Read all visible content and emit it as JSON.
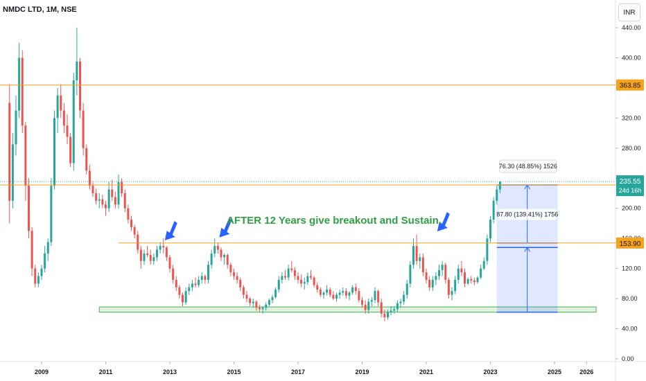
{
  "header": {
    "symbol_label": "NMDC LTD, 1M, NSE",
    "currency": "INR"
  },
  "chart_data": {
    "type": "candlestick",
    "ylim": [
      0,
      440
    ],
    "xlim": [
      2008.0,
      2026.8
    ],
    "y_ticks": [
      "0.00",
      "40.00",
      "80.00",
      "120.00",
      "160.00",
      "200.00",
      "240.00",
      "280.00",
      "320.00",
      "360.00",
      "400.00",
      "440.00"
    ],
    "x_ticks": [
      "2009",
      "2011",
      "2013",
      "2015",
      "2017",
      "2019",
      "2021",
      "2023",
      "2025",
      "2026"
    ],
    "horizontal_levels": [
      {
        "value": 363.85,
        "label": "363.85"
      },
      {
        "value": 231.0,
        "label": "231.00"
      },
      {
        "value": 153.9,
        "label": "153.90"
      }
    ],
    "last_price": {
      "value": 235.55,
      "label": "235.55",
      "countdown": "24d 16h"
    },
    "support_zone": {
      "from_year": 2010.8,
      "to_year": 2026.3,
      "low": 62,
      "high": 69
    },
    "annotation": "AFTER 12 Years give breakout and Sustain.",
    "measure_box": {
      "from_year": 2023.2,
      "to_year": 2025.1,
      "low": 62,
      "high": 231,
      "label_upper": "76.30 (48.85%) 1526",
      "label_lower": "87.80 (139.41%) 1756"
    },
    "arrows_at_years": [
      2012.8,
      2014.5,
      2021.3
    ],
    "colors": {
      "up": "#26a69a",
      "down": "#ef5350",
      "level": "#f7a21b",
      "measure": "#2962ff",
      "zone": "#4caf50",
      "text_green": "#2ea043"
    },
    "candles": [
      [
        2008.0,
        340,
        365,
        180,
        210
      ],
      [
        2008.1,
        210,
        300,
        200,
        285
      ],
      [
        2008.2,
        285,
        350,
        270,
        330
      ],
      [
        2008.3,
        330,
        420,
        320,
        400
      ],
      [
        2008.4,
        400,
        410,
        300,
        310
      ],
      [
        2008.5,
        310,
        315,
        210,
        230
      ],
      [
        2008.6,
        230,
        240,
        160,
        170
      ],
      [
        2008.7,
        170,
        175,
        110,
        120
      ],
      [
        2008.8,
        120,
        125,
        95,
        100
      ],
      [
        2008.9,
        100,
        115,
        95,
        110
      ],
      [
        2009.0,
        110,
        125,
        105,
        120
      ],
      [
        2009.1,
        120,
        150,
        115,
        140
      ],
      [
        2009.2,
        140,
        160,
        130,
        155
      ],
      [
        2009.3,
        155,
        240,
        150,
        230
      ],
      [
        2009.4,
        230,
        330,
        225,
        320
      ],
      [
        2009.5,
        320,
        360,
        300,
        350
      ],
      [
        2009.6,
        350,
        365,
        320,
        330
      ],
      [
        2009.7,
        330,
        340,
        300,
        310
      ],
      [
        2009.8,
        310,
        325,
        285,
        295
      ],
      [
        2009.9,
        295,
        300,
        255,
        260
      ],
      [
        2010.0,
        260,
        380,
        250,
        370
      ],
      [
        2010.1,
        370,
        440,
        350,
        395
      ],
      [
        2010.2,
        395,
        400,
        320,
        330
      ],
      [
        2010.3,
        330,
        340,
        270,
        280
      ],
      [
        2010.4,
        280,
        285,
        245,
        250
      ],
      [
        2010.5,
        250,
        258,
        225,
        230
      ],
      [
        2010.6,
        230,
        235,
        215,
        220
      ],
      [
        2010.7,
        220,
        226,
        205,
        210
      ],
      [
        2010.8,
        210,
        220,
        200,
        212
      ],
      [
        2010.9,
        212,
        218,
        200,
        205
      ],
      [
        2011.0,
        205,
        210,
        190,
        200
      ],
      [
        2011.1,
        200,
        235,
        195,
        225
      ],
      [
        2011.2,
        225,
        238,
        210,
        215
      ],
      [
        2011.3,
        215,
        222,
        200,
        205
      ],
      [
        2011.4,
        205,
        245,
        200,
        235
      ],
      [
        2011.5,
        235,
        240,
        215,
        220
      ],
      [
        2011.6,
        220,
        225,
        195,
        200
      ],
      [
        2011.7,
        200,
        205,
        180,
        185
      ],
      [
        2011.8,
        185,
        190,
        170,
        175
      ],
      [
        2011.9,
        175,
        178,
        160,
        165
      ],
      [
        2012.0,
        165,
        170,
        140,
        145
      ],
      [
        2012.1,
        145,
        150,
        120,
        130
      ],
      [
        2012.2,
        130,
        145,
        125,
        140
      ],
      [
        2012.3,
        140,
        150,
        135,
        138
      ],
      [
        2012.4,
        138,
        145,
        125,
        130
      ],
      [
        2012.5,
        130,
        140,
        125,
        135
      ],
      [
        2012.6,
        135,
        150,
        130,
        145
      ],
      [
        2012.7,
        145,
        155,
        140,
        150
      ],
      [
        2012.8,
        150,
        160,
        140,
        148
      ],
      [
        2012.9,
        148,
        150,
        130,
        135
      ],
      [
        2013.0,
        135,
        138,
        115,
        120
      ],
      [
        2013.1,
        120,
        125,
        100,
        105
      ],
      [
        2013.2,
        105,
        110,
        90,
        95
      ],
      [
        2013.3,
        95,
        98,
        80,
        85
      ],
      [
        2013.4,
        85,
        88,
        70,
        75
      ],
      [
        2013.5,
        75,
        95,
        72,
        90
      ],
      [
        2013.6,
        90,
        100,
        85,
        95
      ],
      [
        2013.7,
        95,
        105,
        90,
        100
      ],
      [
        2013.8,
        100,
        108,
        95,
        98
      ],
      [
        2013.9,
        98,
        110,
        95,
        105
      ],
      [
        2014.0,
        105,
        115,
        100,
        110
      ],
      [
        2014.1,
        110,
        112,
        100,
        105
      ],
      [
        2014.2,
        105,
        130,
        100,
        125
      ],
      [
        2014.3,
        125,
        145,
        120,
        140
      ],
      [
        2014.4,
        140,
        160,
        135,
        150
      ],
      [
        2014.5,
        150,
        155,
        140,
        145
      ],
      [
        2014.6,
        145,
        148,
        130,
        135
      ],
      [
        2014.7,
        135,
        140,
        125,
        138
      ],
      [
        2014.8,
        138,
        140,
        120,
        125
      ],
      [
        2014.9,
        125,
        128,
        110,
        115
      ],
      [
        2015.0,
        115,
        120,
        105,
        110
      ],
      [
        2015.1,
        110,
        115,
        100,
        105
      ],
      [
        2015.2,
        105,
        108,
        90,
        95
      ],
      [
        2015.3,
        95,
        98,
        80,
        85
      ],
      [
        2015.4,
        85,
        90,
        75,
        80
      ],
      [
        2015.5,
        80,
        82,
        70,
        74
      ],
      [
        2015.6,
        74,
        80,
        68,
        76
      ],
      [
        2015.7,
        76,
        78,
        64,
        68
      ],
      [
        2015.8,
        68,
        72,
        62,
        66
      ],
      [
        2015.9,
        66,
        70,
        60,
        68
      ],
      [
        2016.0,
        68,
        75,
        64,
        72
      ],
      [
        2016.1,
        72,
        80,
        70,
        78
      ],
      [
        2016.2,
        78,
        85,
        74,
        82
      ],
      [
        2016.3,
        82,
        95,
        80,
        92
      ],
      [
        2016.4,
        92,
        110,
        88,
        105
      ],
      [
        2016.5,
        105,
        115,
        100,
        110
      ],
      [
        2016.6,
        110,
        118,
        105,
        108
      ],
      [
        2016.7,
        108,
        125,
        104,
        120
      ],
      [
        2016.8,
        120,
        130,
        115,
        118
      ],
      [
        2016.9,
        118,
        122,
        105,
        110
      ],
      [
        2017.0,
        110,
        115,
        100,
        105
      ],
      [
        2017.1,
        105,
        112,
        95,
        100
      ],
      [
        2017.2,
        100,
        108,
        92,
        102
      ],
      [
        2017.3,
        102,
        115,
        98,
        110
      ],
      [
        2017.4,
        110,
        118,
        105,
        108
      ],
      [
        2017.5,
        108,
        110,
        95,
        98
      ],
      [
        2017.6,
        98,
        102,
        88,
        92
      ],
      [
        2017.7,
        92,
        95,
        82,
        85
      ],
      [
        2017.8,
        85,
        90,
        80,
        88
      ],
      [
        2017.9,
        88,
        98,
        84,
        92
      ],
      [
        2018.0,
        92,
        95,
        82,
        85
      ],
      [
        2018.1,
        85,
        90,
        78,
        80
      ],
      [
        2018.2,
        80,
        88,
        76,
        85
      ],
      [
        2018.3,
        85,
        92,
        80,
        88
      ],
      [
        2018.4,
        88,
        95,
        84,
        90
      ],
      [
        2018.5,
        90,
        94,
        80,
        84
      ],
      [
        2018.6,
        84,
        90,
        78,
        88
      ],
      [
        2018.7,
        88,
        98,
        85,
        95
      ],
      [
        2018.8,
        95,
        100,
        85,
        90
      ],
      [
        2018.9,
        90,
        94,
        75,
        78
      ],
      [
        2019.0,
        78,
        82,
        68,
        72
      ],
      [
        2019.1,
        72,
        78,
        60,
        65
      ],
      [
        2019.2,
        65,
        80,
        60,
        76
      ],
      [
        2019.3,
        76,
        82,
        70,
        78
      ],
      [
        2019.4,
        78,
        95,
        74,
        90
      ],
      [
        2019.5,
        90,
        92,
        70,
        75
      ],
      [
        2019.6,
        75,
        80,
        55,
        60
      ],
      [
        2019.7,
        60,
        65,
        50,
        55
      ],
      [
        2019.8,
        55,
        65,
        52,
        62
      ],
      [
        2019.9,
        62,
        70,
        58,
        64
      ],
      [
        2020.0,
        64,
        70,
        60,
        66
      ],
      [
        2020.1,
        66,
        78,
        62,
        74
      ],
      [
        2020.2,
        74,
        80,
        68,
        76
      ],
      [
        2020.3,
        76,
        90,
        72,
        85
      ],
      [
        2020.4,
        85,
        105,
        80,
        100
      ],
      [
        2020.5,
        100,
        130,
        95,
        125
      ],
      [
        2020.6,
        125,
        160,
        120,
        150
      ],
      [
        2020.7,
        150,
        165,
        125,
        130
      ],
      [
        2020.8,
        130,
        140,
        120,
        135
      ],
      [
        2020.9,
        135,
        140,
        110,
        115
      ],
      [
        2021.0,
        115,
        120,
        100,
        105
      ],
      [
        2021.1,
        105,
        110,
        90,
        95
      ],
      [
        2021.2,
        95,
        110,
        90,
        105
      ],
      [
        2021.3,
        105,
        115,
        98,
        110
      ],
      [
        2021.4,
        110,
        125,
        105,
        118
      ],
      [
        2021.5,
        118,
        130,
        110,
        125
      ],
      [
        2021.6,
        125,
        128,
        100,
        105
      ],
      [
        2021.7,
        105,
        108,
        80,
        85
      ],
      [
        2021.8,
        85,
        95,
        78,
        90
      ],
      [
        2021.9,
        90,
        110,
        86,
        105
      ],
      [
        2022.0,
        105,
        125,
        100,
        120
      ],
      [
        2022.1,
        120,
        130,
        110,
        115
      ],
      [
        2022.2,
        115,
        120,
        95,
        100
      ],
      [
        2022.3,
        100,
        108,
        98,
        106
      ],
      [
        2022.4,
        106,
        110,
        100,
        104
      ],
      [
        2022.5,
        104,
        108,
        98,
        102
      ],
      [
        2022.6,
        102,
        110,
        100,
        108
      ],
      [
        2022.7,
        108,
        125,
        106,
        120
      ],
      [
        2022.8,
        120,
        135,
        118,
        130
      ],
      [
        2022.9,
        130,
        165,
        125,
        160
      ],
      [
        2023.0,
        160,
        190,
        155,
        185
      ],
      [
        2023.1,
        185,
        215,
        180,
        210
      ],
      [
        2023.2,
        210,
        230,
        205,
        225
      ],
      [
        2023.3,
        225,
        236,
        220,
        235.55
      ]
    ]
  }
}
